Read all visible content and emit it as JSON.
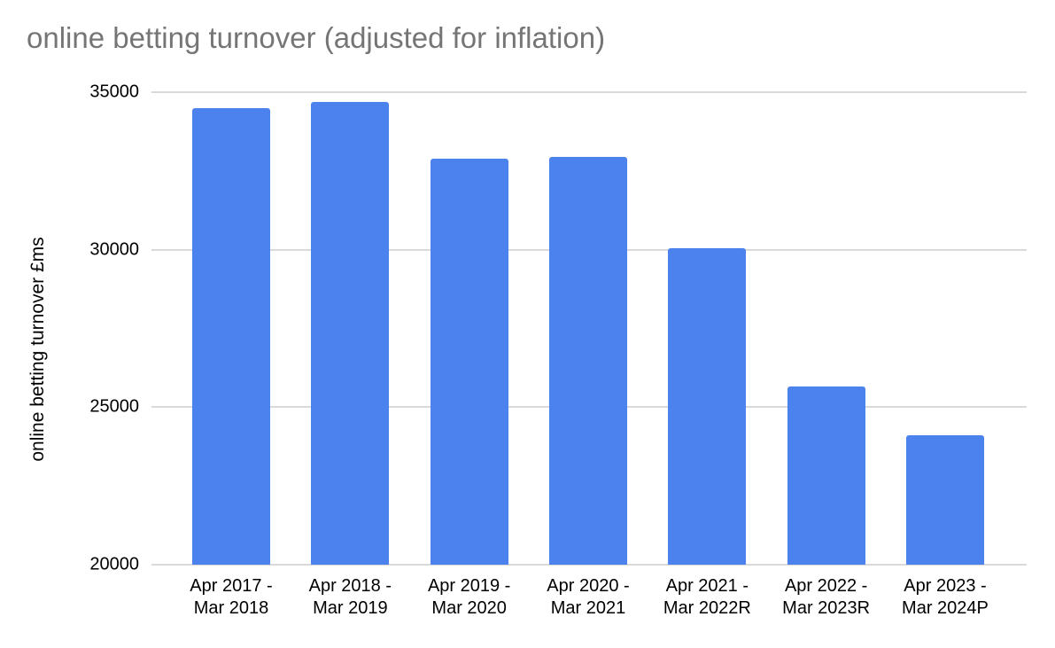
{
  "chart_data": {
    "type": "bar",
    "title": "online betting turnover (adjusted for inflation)",
    "ylabel": "online betting turnover £ms",
    "xlabel": "",
    "categories": [
      "Apr 2017 -\nMar 2018",
      "Apr 2018 -\nMar 2019",
      "Apr 2019 -\nMar 2020",
      "Apr 2020 -\nMar 2021",
      "Apr 2021 -\nMar 2022R",
      "Apr 2022 -\nMar 2023R",
      "Apr 2023 -\nMar 2024P"
    ],
    "values": [
      34500,
      34700,
      32900,
      32950,
      30050,
      25650,
      24100
    ],
    "ylim": [
      20000,
      35000
    ],
    "yticks": [
      20000,
      25000,
      30000,
      35000
    ],
    "grid": true,
    "legend": "none",
    "bar_color": "#4b82ed",
    "gridline_color": "#d9d9d9",
    "title_color": "#757575",
    "axis_text_color": "#000000"
  }
}
